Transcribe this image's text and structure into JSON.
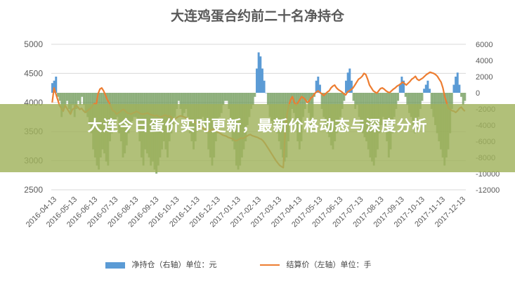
{
  "title": "大连鸡蛋合约前二十名净持仓",
  "banner": {
    "text": "大连今日蛋价实时更新，最新价格动态与深度分析"
  },
  "legend": {
    "bar_label": "净持仓（右轴）单位：元",
    "line_label": "结算价（左轴）单位：手"
  },
  "colors": {
    "bar": "#5b9bd5",
    "line": "#ed7d31",
    "grid": "#d9d9d9",
    "axis_text": "#595959",
    "banner": "#a0b25c"
  },
  "chart_data": {
    "type": "bar+line",
    "title": "大连鸡蛋合约前二十名净持仓",
    "left_axis": {
      "ylim": [
        2500,
        5000
      ],
      "ticks": [
        "2500",
        "3000",
        "3500",
        "4000",
        "4500",
        "5000"
      ]
    },
    "right_axis": {
      "ylim": [
        -12000,
        6000
      ],
      "ticks": [
        "-12000",
        "-10000",
        "-8000",
        "-6000",
        "-4000",
        "-2000",
        "0",
        "2000",
        "4000",
        "6000"
      ]
    },
    "x_labels": [
      "2016-04-13",
      "2016-05-13",
      "2016-06-13",
      "2016-07-13",
      "2016-08-13",
      "2016-09-13",
      "2016-10-13",
      "2016-11-13",
      "2016-12-13",
      "2017-01-13",
      "2017-02-13",
      "2017-03-13",
      "2017-04-13",
      "2017-05-13",
      "2017-06-13",
      "2017-07-13",
      "2017-08-13",
      "2017-09-13",
      "2017-10-13",
      "2017-11-13",
      "2017-12-13"
    ],
    "series": [
      {
        "name": "净持仓（右轴）单位：元",
        "kind": "bar",
        "axis": "right",
        "values": [
          1200,
          1500,
          2000,
          -500,
          -1000,
          -3000,
          -2000,
          -1500,
          -1000,
          -2000,
          -2500,
          -1500,
          -3000,
          -2000,
          -1000,
          -1500,
          -500,
          -1500,
          -2500,
          -3000,
          -4000,
          -5000,
          -7000,
          -8000,
          -9000,
          -9500,
          -8000,
          -7000,
          -7500,
          -8500,
          -9000,
          -6000,
          -5000,
          -4000,
          -3500,
          -3000,
          -5000,
          -6000,
          -8000,
          -7500,
          -6500,
          -5000,
          -4000,
          -3500,
          -3000,
          -3000,
          -4000,
          -6000,
          -8000,
          -9000,
          -7000,
          -7500,
          -8000,
          -9000,
          -8500,
          -9500,
          -10000,
          -9000,
          -8000,
          -7000,
          -6000,
          -7000,
          -8000,
          -6000,
          -5000,
          -4000,
          -3000,
          -2000,
          -1000,
          -2000,
          -3000,
          -2500,
          -2000,
          -3000,
          -5000,
          -6000,
          -7000,
          -6000,
          -4500,
          -4000,
          -3500,
          -3000,
          -4000,
          -5000,
          -7000,
          -8000,
          -9000,
          -8000,
          -6000,
          -5000,
          -3000,
          -2500,
          -1500,
          -1000,
          -1000,
          -2000,
          -4000,
          -6000,
          -7000,
          -9000,
          -9500,
          -9000,
          -8000,
          -7000,
          -6000,
          -4000,
          -3000,
          -2000,
          -1500,
          -500,
          3000,
          5000,
          4500,
          3000,
          1500,
          0,
          -1500,
          -3000,
          -3500,
          -4000,
          -4200,
          -5000,
          -6000,
          -7000,
          -8000,
          -8500,
          -8000,
          -6000,
          -4000,
          -2000,
          -2500,
          -4000,
          -6000,
          -7000,
          -6000,
          -3000,
          -2000,
          -1000,
          -2500,
          -4000,
          -3000,
          -500,
          1500,
          2000,
          1000,
          -2000,
          -3000,
          -4500,
          -5000,
          -5500,
          -6500,
          -7000,
          -6000,
          -5000,
          -4000,
          -3000,
          -2000,
          -1000,
          1500,
          2500,
          3000,
          1500,
          -1000,
          -2000,
          -1500,
          -3000,
          -4500,
          -5000,
          -5500,
          -6000,
          -7000,
          -8000,
          -8500,
          -9000,
          -8000,
          -7000,
          -5000,
          -4000,
          -3000,
          -4000,
          -6000,
          -8000,
          -7000,
          -5000,
          -3000,
          -2000,
          -1000,
          1000,
          2000,
          1500,
          -500,
          -1500,
          -2500,
          -3000,
          -4000,
          -5000,
          -4500,
          -3000,
          -2000,
          -1000,
          500,
          1000,
          1500,
          500,
          -2000,
          -3000,
          -4000,
          -5000,
          -6000,
          -7000,
          -8000,
          -9000,
          -8000,
          -7000,
          -5000,
          -2000,
          1000,
          2000,
          2500,
          1000,
          -500,
          -1500,
          -1000
        ]
      },
      {
        "name": "结算价（左轴）单位：手",
        "kind": "line",
        "axis": "left",
        "values": [
          4000,
          4250,
          4150,
          4050,
          3950,
          3900,
          3850,
          3950,
          3900,
          3850,
          3800,
          3880,
          3900,
          3950,
          3920,
          3880,
          3900,
          3860,
          3830,
          3850,
          3880,
          3900,
          3950,
          3980,
          3970,
          4150,
          4230,
          4250,
          4200,
          4130,
          4050,
          4000,
          3920,
          3860,
          3850,
          3800,
          3820,
          3840,
          3870,
          3880,
          3850,
          3820,
          3810,
          3800,
          3820,
          3830,
          3850,
          3830,
          3810,
          3800,
          3800,
          3810,
          3820,
          3800,
          3790,
          3780,
          3770,
          3780,
          3760,
          3750,
          3760,
          3780,
          3780,
          3760,
          3770,
          3750,
          3700,
          3720,
          3740,
          3760,
          3770,
          3760,
          3750,
          3740,
          3720,
          3700,
          3680,
          3670,
          3660,
          3640,
          3610,
          3580,
          3560,
          3540,
          3520,
          3500,
          3510,
          3530,
          3540,
          3520,
          3500,
          3480,
          3460,
          3440,
          3430,
          3420,
          3400,
          3390,
          3380,
          3360,
          3340,
          3350,
          3370,
          3390,
          3380,
          3400,
          3420,
          3440,
          3450,
          3430,
          3420,
          3410,
          3400,
          3380,
          3370,
          3340,
          3300,
          3250,
          3200,
          3150,
          3100,
          3050,
          3000,
          2960,
          2920,
          2900,
          2880,
          3500,
          3800,
          3950,
          4050,
          4100,
          4000,
          3950,
          4000,
          4050,
          4100,
          4080,
          4050,
          4000,
          4020,
          4080,
          4100,
          4150,
          4180,
          4200,
          4170,
          4150,
          4120,
          4150,
          4180,
          4200,
          4250,
          4280,
          4300,
          4250,
          4220,
          4200,
          4180,
          4150,
          4130,
          4180,
          4200,
          4220,
          4250,
          4300,
          4350,
          4400,
          4420,
          4450,
          4500,
          4480,
          4400,
          4300,
          4250,
          4200,
          4180,
          4160,
          4200,
          4240,
          4250,
          4230,
          4200,
          4180,
          4170,
          4200,
          4230,
          4250,
          4280,
          4300,
          4320,
          4350,
          4330,
          4300,
          4330,
          4360,
          4400,
          4420,
          4450,
          4400,
          4380,
          4400,
          4420,
          4450,
          4480,
          4500,
          4520,
          4510,
          4500,
          4480,
          4450,
          4400,
          4350,
          4250,
          4100,
          4000,
          3900,
          3880,
          3860,
          3850,
          3830,
          3860,
          3900,
          3920,
          3880,
          3850
        ]
      }
    ],
    "legend_position": "bottom",
    "grid": true
  }
}
